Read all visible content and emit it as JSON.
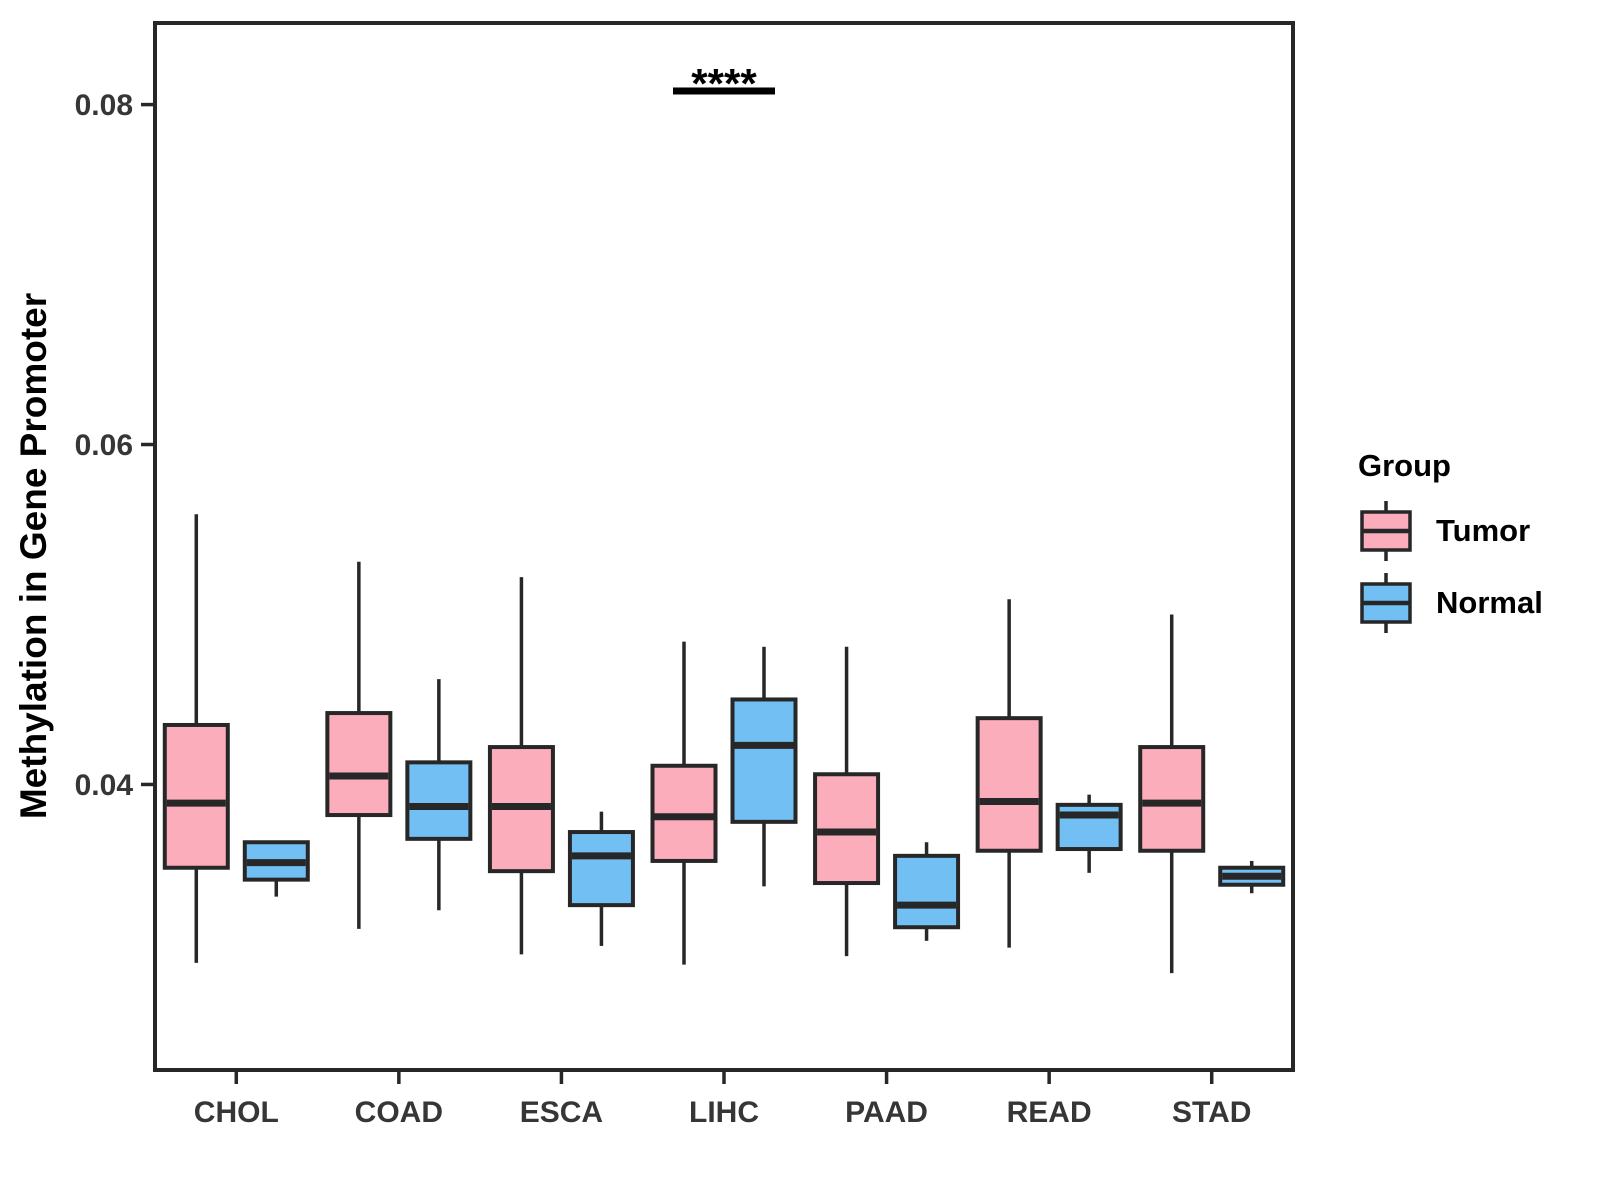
{
  "y_axis_title": "Methylation in Gene Promoter",
  "legend": {
    "title": "Group",
    "entries": [
      {
        "label": "Tumor"
      },
      {
        "label": "Normal"
      }
    ]
  },
  "colors": {
    "tumor_fill": "#FBADBB",
    "normal_fill": "#72BFF3",
    "stroke": "#272727",
    "axis_text": "#363636",
    "significance_text": "#000000",
    "panel_background": "#FFFFFF"
  },
  "chart_data": {
    "type": "boxplot",
    "title": "",
    "xlabel": "",
    "ylabel": "Methylation in Gene Promoter",
    "categories": [
      "CHOL",
      "COAD",
      "ESCA",
      "LIHC",
      "PAAD",
      "READ",
      "STAD"
    ],
    "ylim": [
      0.0232,
      0.0848
    ],
    "yticks": [
      0.04,
      0.06,
      0.08
    ],
    "grid": false,
    "legend_position": "right",
    "legend_title": "Group",
    "series": [
      {
        "name": "Tumor",
        "color": "#FBADBB",
        "values": [
          {
            "min": 0.0295,
            "q1": 0.0351,
            "median": 0.0389,
            "q3": 0.0435,
            "max": 0.0559
          },
          {
            "min": 0.0315,
            "q1": 0.0382,
            "median": 0.0405,
            "q3": 0.0442,
            "max": 0.0531
          },
          {
            "min": 0.03,
            "q1": 0.0349,
            "median": 0.0387,
            "q3": 0.0422,
            "max": 0.0522
          },
          {
            "min": 0.0294,
            "q1": 0.0355,
            "median": 0.0381,
            "q3": 0.0411,
            "max": 0.0484
          },
          {
            "min": 0.0299,
            "q1": 0.0342,
            "median": 0.0372,
            "q3": 0.0406,
            "max": 0.0481
          },
          {
            "min": 0.0304,
            "q1": 0.0361,
            "median": 0.039,
            "q3": 0.0439,
            "max": 0.0509
          },
          {
            "min": 0.0289,
            "q1": 0.0361,
            "median": 0.0389,
            "q3": 0.0422,
            "max": 0.05
          }
        ]
      },
      {
        "name": "Normal",
        "color": "#72BFF3",
        "values": [
          {
            "min": 0.0334,
            "q1": 0.0344,
            "median": 0.0354,
            "q3": 0.0366,
            "max": 0.0366
          },
          {
            "min": 0.0326,
            "q1": 0.0368,
            "median": 0.0387,
            "q3": 0.0413,
            "max": 0.0462
          },
          {
            "min": 0.0305,
            "q1": 0.0329,
            "median": 0.0358,
            "q3": 0.0372,
            "max": 0.0384
          },
          {
            "min": 0.034,
            "q1": 0.0378,
            "median": 0.0423,
            "q3": 0.045,
            "max": 0.0481
          },
          {
            "min": 0.0308,
            "q1": 0.0316,
            "median": 0.0329,
            "q3": 0.0358,
            "max": 0.0366
          },
          {
            "min": 0.0348,
            "q1": 0.0362,
            "median": 0.0382,
            "q3": 0.0388,
            "max": 0.0394
          },
          {
            "min": 0.0336,
            "q1": 0.0341,
            "median": 0.0346,
            "q3": 0.0351,
            "max": 0.0355
          }
        ]
      }
    ],
    "significance": {
      "category": "LIHC",
      "label": "****",
      "bar_value": 0.0808
    }
  }
}
